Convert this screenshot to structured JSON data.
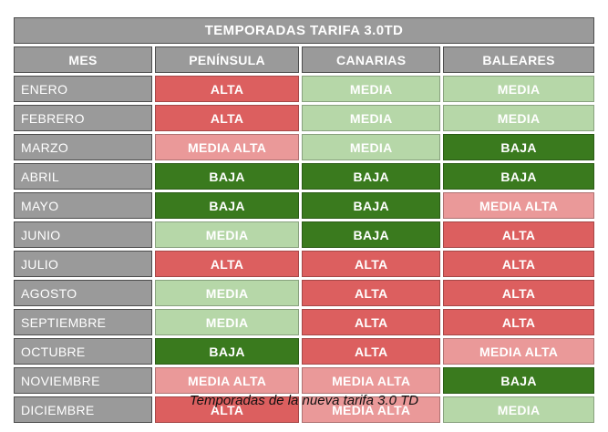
{
  "table": {
    "title": "TEMPORADAS TARIFA 3.0TD",
    "columns": [
      "MES",
      "PENÍNSULA",
      "CANARIAS",
      "BALEARES"
    ],
    "rows": [
      {
        "mes": "ENERO",
        "values": [
          "ALTA",
          "MEDIA",
          "MEDIA"
        ]
      },
      {
        "mes": "FEBRERO",
        "values": [
          "ALTA",
          "MEDIA",
          "MEDIA"
        ]
      },
      {
        "mes": "MARZO",
        "values": [
          "MEDIA ALTA",
          "MEDIA",
          "BAJA"
        ]
      },
      {
        "mes": "ABRIL",
        "values": [
          "BAJA",
          "BAJA",
          "BAJA"
        ]
      },
      {
        "mes": "MAYO",
        "values": [
          "BAJA",
          "BAJA",
          "MEDIA ALTA"
        ]
      },
      {
        "mes": "JUNIO",
        "values": [
          "MEDIA",
          "BAJA",
          "ALTA"
        ]
      },
      {
        "mes": "JULIO",
        "values": [
          "ALTA",
          "ALTA",
          "ALTA"
        ]
      },
      {
        "mes": "AGOSTO",
        "values": [
          "MEDIA",
          "ALTA",
          "ALTA"
        ]
      },
      {
        "mes": "SEPTIEMBRE",
        "values": [
          "MEDIA",
          "ALTA",
          "ALTA"
        ]
      },
      {
        "mes": "OCTUBRE",
        "values": [
          "BAJA",
          "ALTA",
          "MEDIA ALTA"
        ]
      },
      {
        "mes": "NOVIEMBRE",
        "values": [
          "MEDIA ALTA",
          "MEDIA ALTA",
          "BAJA"
        ]
      },
      {
        "mes": "DICIEMBRE",
        "values": [
          "ALTA",
          "MEDIA ALTA",
          "MEDIA"
        ]
      }
    ],
    "season_colors": {
      "ALTA": "#dc5f5f",
      "MEDIA ALTA": "#ea9999",
      "MEDIA": "#b6d7a8",
      "BAJA": "#3a7a1e"
    },
    "header_bg": "#9a9a9a",
    "header_text_color": "#ffffff",
    "border_color": "#4d4d4d"
  },
  "caption": "Temporadas de la nueva tarifa 3.0 TD",
  "chart_data": {
    "type": "table",
    "title": "TEMPORADAS TARIFA 3.0TD",
    "caption": "Temporadas de la nueva tarifa 3.0 TD",
    "columns": [
      "MES",
      "PENÍNSULA",
      "CANARIAS",
      "BALEARES"
    ],
    "categories": [
      "ENERO",
      "FEBRERO",
      "MARZO",
      "ABRIL",
      "MAYO",
      "JUNIO",
      "JULIO",
      "AGOSTO",
      "SEPTIEMBRE",
      "OCTUBRE",
      "NOVIEMBRE",
      "DICIEMBRE"
    ],
    "series": [
      {
        "name": "PENÍNSULA",
        "values": [
          "ALTA",
          "ALTA",
          "MEDIA ALTA",
          "BAJA",
          "BAJA",
          "MEDIA",
          "ALTA",
          "MEDIA",
          "MEDIA",
          "BAJA",
          "MEDIA ALTA",
          "ALTA"
        ]
      },
      {
        "name": "CANARIAS",
        "values": [
          "MEDIA",
          "MEDIA",
          "MEDIA",
          "BAJA",
          "BAJA",
          "BAJA",
          "ALTA",
          "ALTA",
          "ALTA",
          "ALTA",
          "MEDIA ALTA",
          "MEDIA ALTA"
        ]
      },
      {
        "name": "BALEARES",
        "values": [
          "MEDIA",
          "MEDIA",
          "BAJA",
          "BAJA",
          "MEDIA ALTA",
          "ALTA",
          "ALTA",
          "ALTA",
          "ALTA",
          "MEDIA ALTA",
          "BAJA",
          "MEDIA"
        ]
      }
    ],
    "value_colors": {
      "ALTA": "#dc5f5f",
      "MEDIA ALTA": "#ea9999",
      "MEDIA": "#b6d7a8",
      "BAJA": "#3a7a1e"
    },
    "legend_position": "none",
    "grid": false
  }
}
